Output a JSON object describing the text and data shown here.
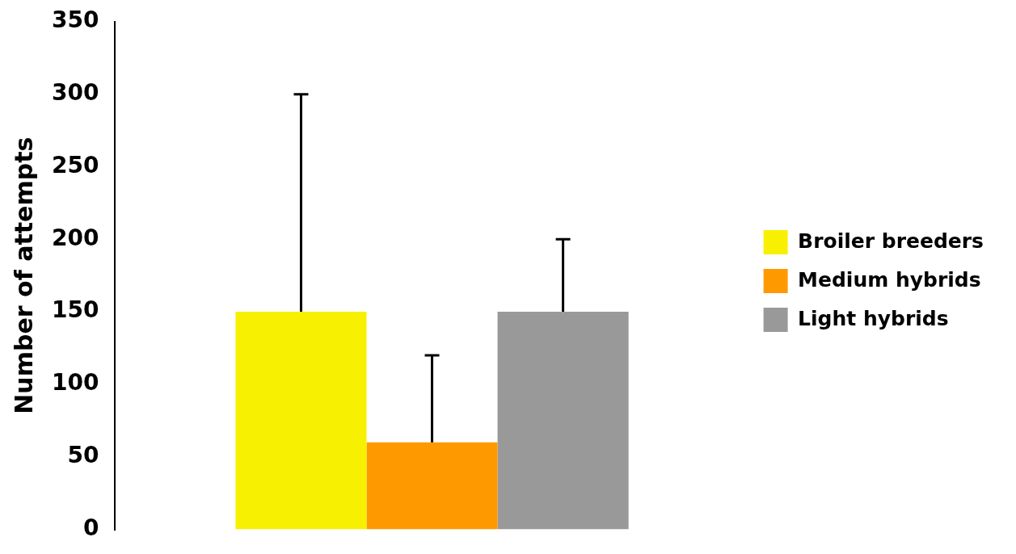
{
  "chart_data": {
    "type": "bar",
    "ylabel": "Number of attempts",
    "categories": [
      null
    ],
    "series": [
      {
        "name": "Broiler breeders",
        "color": "#f7f000",
        "values": [
          150
        ],
        "errors": [
          [
            150,
            300
          ]
        ]
      },
      {
        "name": "Medium hybrids",
        "color": "#ff9900",
        "values": [
          60
        ],
        "errors": [
          [
            60,
            120
          ]
        ]
      },
      {
        "name": "Light hybrids",
        "color": "#999999",
        "values": [
          150
        ],
        "errors": [
          [
            150,
            200
          ]
        ]
      }
    ],
    "ylim": [
      0,
      350
    ],
    "yticks": [
      0,
      50,
      100,
      150,
      200,
      250,
      300,
      350
    ],
    "legend": "right"
  }
}
